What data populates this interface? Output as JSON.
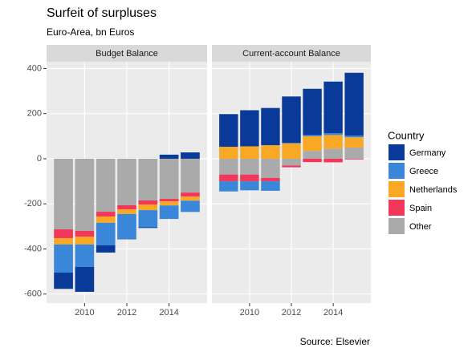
{
  "chart_data": {
    "type": "bar",
    "title": "Surfeit of surpluses",
    "subtitle": "Euro-Area, bn Euros",
    "caption": "Source: Elsevier",
    "legend_title": "Country",
    "x": [
      2009,
      2010,
      2011,
      2012,
      2013,
      2014,
      2015
    ],
    "xlim": [
      2008.2,
      2015.8
    ],
    "xticks": [
      2010,
      2012,
      2014
    ],
    "ylim": [
      -640,
      430
    ],
    "yticks": [
      -600,
      -400,
      -200,
      0,
      200,
      400
    ],
    "grid": true,
    "stacked": true,
    "panels": [
      {
        "title": "Budget Balance",
        "series": [
          {
            "name": "Germany",
            "color": "#0a3a99",
            "values": [
              -72,
              -110,
              -32,
              -2,
              -4,
              18,
              28
            ]
          },
          {
            "name": "Greece",
            "color": "#3a86d8",
            "values": [
              -125,
              -100,
              -100,
              -110,
              -75,
              -60,
              -50
            ]
          },
          {
            "name": "Netherlands",
            "color": "#f9a825",
            "values": [
              -28,
              -35,
              -28,
              -21,
              -25,
              -18,
              -18
            ]
          },
          {
            "name": "Spain",
            "color": "#f2385a",
            "values": [
              -39,
              -25,
              -21,
              -18,
              -18,
              -11,
              -18
            ]
          },
          {
            "name": "Other",
            "color": "#aaaaaa",
            "values": [
              -313,
              -320,
              -235,
              -206,
              -185,
              -178,
              -150
            ]
          }
        ]
      },
      {
        "title": "Current-account Balance",
        "series": [
          {
            "name": "Germany",
            "color": "#0a3a99",
            "values": [
              145,
              160,
              165,
              206,
              205,
              229,
              278
            ]
          },
          {
            "name": "Greece",
            "color": "#3a86d8",
            "values": [
              -45,
              -40,
              -42,
              2,
              5,
              8,
              8
            ]
          },
          {
            "name": "Netherlands",
            "color": "#f9a825",
            "values": [
              53,
              55,
              60,
              68,
              65,
              60,
              45
            ]
          },
          {
            "name": "Spain",
            "color": "#f2385a",
            "values": [
              -30,
              -30,
              -15,
              -8,
              -15,
              -16,
              -3
            ]
          },
          {
            "name": "Other",
            "color": "#aaaaaa",
            "values": [
              -70,
              -70,
              -85,
              -30,
              35,
              45,
              50
            ]
          }
        ]
      }
    ]
  }
}
